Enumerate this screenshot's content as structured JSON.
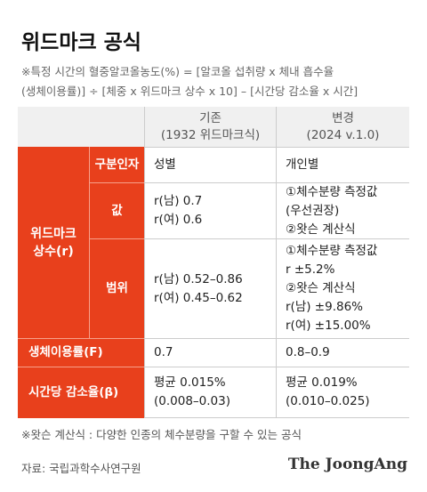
{
  "title": "위드마크 공식",
  "formula": [
    "※특정 시간의 혈중알코올농도(%) = [알코올 섭취량 x 체내 흡수율",
    "(생체이용률)] ÷ [체중 x 위드마크 상수 x 10] – [시간당 감소율 x 시간]"
  ],
  "table": {
    "columns": [
      [
        "기존",
        "(1932 위드마크식)"
      ],
      [
        "변경",
        "(2024 v.1.0)"
      ]
    ],
    "group": [
      "위드마크",
      "상수(r)"
    ],
    "rows": [
      {
        "label": "구분인자",
        "cells": [
          [
            "성별"
          ],
          [
            "개인별"
          ]
        ]
      },
      {
        "label": "값",
        "cells": [
          [
            "r(남) 0.7",
            "r(여) 0.6"
          ],
          [
            "①체수분량 측정값",
            "(우선권장)",
            "②왓슨 계산식"
          ]
        ]
      },
      {
        "label": "범위",
        "cells": [
          [
            "r(남) 0.52–0.86",
            "r(여) 0.45–0.62"
          ],
          [
            "①체수분량 측정값",
            " r ±5.2%",
            "②왓슨 계산식",
            "r(남) ±9.86%",
            "r(여) ±15.00%"
          ]
        ]
      },
      {
        "label": "생체이용률(F)",
        "cells": [
          [
            "0.7"
          ],
          [
            "0.8–0.9"
          ]
        ]
      },
      {
        "label": "시간당 감소율(β)",
        "cells": [
          [
            "평균 0.015%",
            "(0.008–0.03)"
          ],
          [
            "평균 0.019%",
            "(0.010–0.025)"
          ]
        ]
      }
    ]
  },
  "footnote": "※왓슨 계산식 : 다양한 인종의 체수분량을 구할 수 있는 공식",
  "source": "자료: 국립과학수사연구원",
  "logo": "The JoongAng"
}
